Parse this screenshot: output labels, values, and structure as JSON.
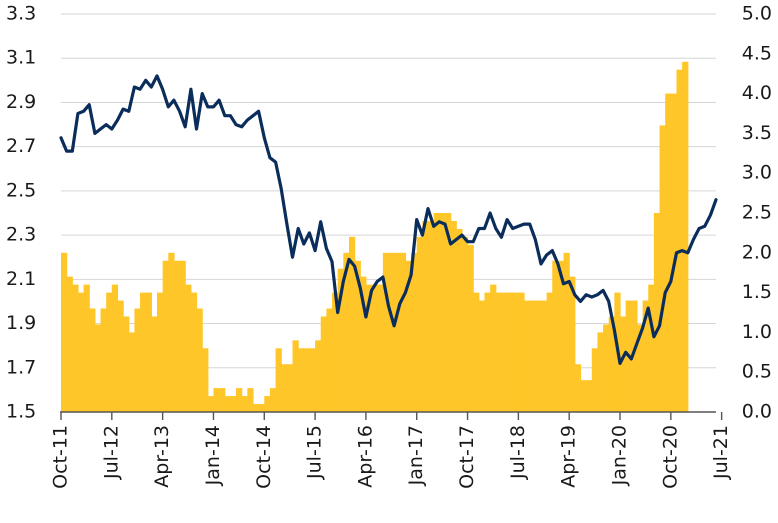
{
  "chart_data": {
    "type": "bar+line",
    "title": "",
    "x_ticks": [
      "Oct-11",
      "Jul-12",
      "Apr-13",
      "Jan-14",
      "Oct-14",
      "Jul-15",
      "Apr-16",
      "Jan-17",
      "Oct-17",
      "Jul-18",
      "Apr-19",
      "Jan-20",
      "Oct-20",
      "Jul-21"
    ],
    "left_axis": {
      "ylim": [
        1.5,
        3.3
      ],
      "ticks": [
        "1.5",
        "1.7",
        "1.9",
        "2.1",
        "2.3",
        "2.5",
        "2.7",
        "2.9",
        "3.1",
        "3.3"
      ]
    },
    "right_axis": {
      "ylim": [
        0.0,
        5.0
      ],
      "ticks": [
        "0.0",
        "0.5",
        "1.0",
        "1.5",
        "2.0",
        "2.5",
        "3.0",
        "3.5",
        "4.0",
        "4.5",
        "5.0"
      ]
    },
    "colors": {
      "bars": "#FFC629",
      "line": "#0B2D5B",
      "grid": "#d6d6d6"
    },
    "series": [
      {
        "type": "bar",
        "axis": "right",
        "start": "2011-10",
        "values": [
          2.0,
          1.7,
          1.6,
          1.5,
          1.6,
          1.3,
          1.1,
          1.3,
          1.5,
          1.6,
          1.4,
          1.2,
          1.0,
          1.3,
          1.5,
          1.5,
          1.2,
          1.5,
          1.9,
          2.0,
          1.9,
          1.9,
          1.6,
          1.5,
          1.3,
          0.8,
          0.2,
          0.3,
          0.3,
          0.2,
          0.2,
          0.3,
          0.2,
          0.3,
          0.1,
          0.1,
          0.2,
          0.3,
          0.8,
          0.6,
          0.6,
          0.9,
          0.8,
          0.8,
          0.8,
          0.9,
          1.2,
          1.3,
          1.5,
          1.8,
          2.0,
          2.2,
          1.9,
          1.7,
          1.6,
          1.6,
          1.6,
          2.0,
          2.0,
          2.0,
          2.0,
          1.9,
          2.0,
          2.2,
          2.4,
          2.4,
          2.5,
          2.5,
          2.5,
          2.4,
          2.3,
          2.2,
          2.1,
          1.5,
          1.4,
          1.5,
          1.6,
          1.5,
          1.5,
          1.5,
          1.5,
          1.5,
          1.4,
          1.4,
          1.4,
          1.4,
          1.5,
          1.9,
          1.9,
          2.0,
          1.7,
          0.6,
          0.4,
          0.4,
          0.8,
          1.0,
          1.1,
          1.2,
          1.5,
          1.2,
          1.4,
          1.4,
          1.1,
          1.4,
          1.6,
          2.5,
          3.6,
          4.0,
          4.0,
          4.3,
          4.4
        ]
      },
      {
        "type": "line",
        "axis": "left",
        "start": "2011-10",
        "values": [
          2.74,
          2.68,
          2.68,
          2.85,
          2.86,
          2.89,
          2.76,
          2.78,
          2.8,
          2.78,
          2.82,
          2.87,
          2.86,
          2.97,
          2.96,
          3.0,
          2.97,
          3.02,
          2.96,
          2.88,
          2.91,
          2.86,
          2.79,
          2.96,
          2.78,
          2.94,
          2.88,
          2.88,
          2.91,
          2.84,
          2.84,
          2.8,
          2.79,
          2.82,
          2.84,
          2.86,
          2.74,
          2.65,
          2.63,
          2.51,
          2.35,
          2.2,
          2.33,
          2.26,
          2.31,
          2.23,
          2.36,
          2.24,
          2.18,
          1.95,
          2.09,
          2.19,
          2.16,
          2.06,
          1.93,
          2.05,
          2.09,
          2.11,
          1.98,
          1.89,
          1.99,
          2.04,
          2.12,
          2.37,
          2.3,
          2.42,
          2.34,
          2.36,
          2.35,
          2.26,
          2.28,
          2.3,
          2.27,
          2.27,
          2.33,
          2.33,
          2.4,
          2.33,
          2.29,
          2.37,
          2.33,
          2.34,
          2.35,
          2.35,
          2.28,
          2.17,
          2.21,
          2.23,
          2.17,
          2.08,
          2.09,
          2.03,
          2.0,
          2.03,
          2.02,
          2.03,
          2.05,
          2.0,
          1.87,
          1.72,
          1.77,
          1.74,
          1.81,
          1.88,
          1.97,
          1.84,
          1.89,
          2.04,
          2.09,
          2.22,
          2.23,
          2.22,
          2.28,
          2.33,
          2.34,
          2.39,
          2.46
        ]
      }
    ]
  }
}
